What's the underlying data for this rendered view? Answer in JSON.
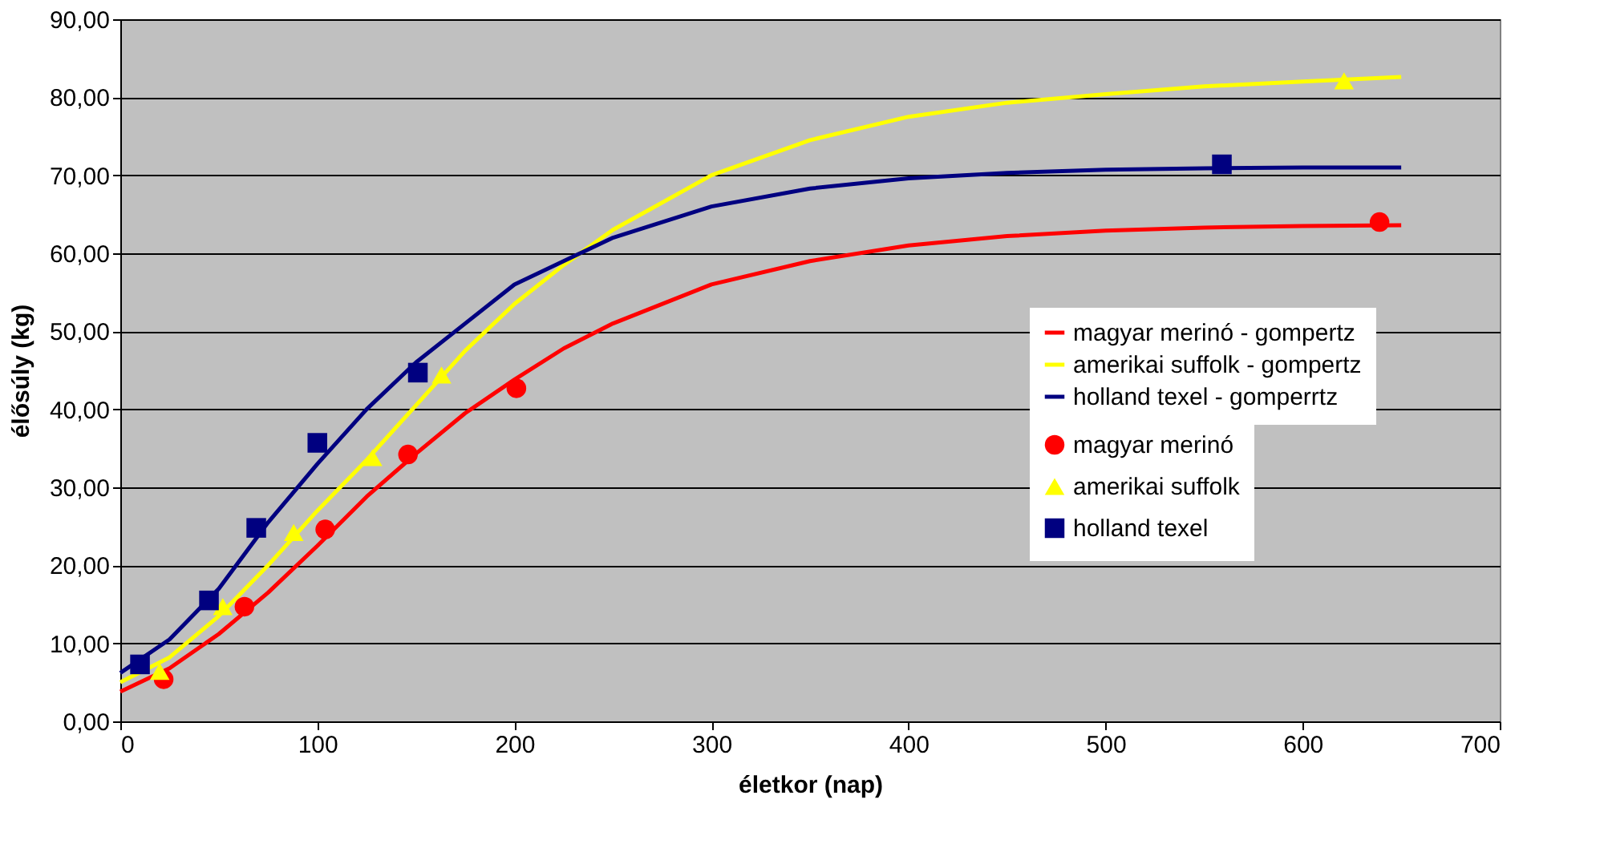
{
  "chart_data": {
    "type": "line",
    "xlabel": "életkor (nap)",
    "ylabel": "élősúly (kg)",
    "xlim": [
      0,
      700
    ],
    "xticks": [
      0,
      100,
      200,
      300,
      400,
      500,
      600,
      700
    ],
    "ylim": [
      0,
      90
    ],
    "yticks": [
      {
        "value": 0,
        "label": "0,00"
      },
      {
        "value": 10,
        "label": "10,00"
      },
      {
        "value": 20,
        "label": "20,00"
      },
      {
        "value": 30,
        "label": "30,00"
      },
      {
        "value": 40,
        "label": "40,00"
      },
      {
        "value": 50,
        "label": "50,00"
      },
      {
        "value": 60,
        "label": "60,00"
      },
      {
        "value": 70,
        "label": "70,00"
      },
      {
        "value": 80,
        "label": "80,00"
      },
      {
        "value": 90,
        "label": "90,00"
      }
    ],
    "grid": "y",
    "legend": "right",
    "series": [
      {
        "name": "magyar merinó - gompertz",
        "color": "#ff0000",
        "x": [
          0,
          25,
          50,
          75,
          100,
          125,
          150,
          175,
          200,
          225,
          250,
          300,
          350,
          400,
          450,
          500,
          550,
          600,
          650
        ],
        "values": [
          3.8,
          6.8,
          11.2,
          16.5,
          22.5,
          28.8,
          34.3,
          39.5,
          43.8,
          47.8,
          51.0,
          56.0,
          59.0,
          61.0,
          62.2,
          62.9,
          63.3,
          63.5,
          63.6
        ]
      },
      {
        "name": "amerikai suffolk - gompertz",
        "color": "#ffff00",
        "x": [
          0,
          25,
          50,
          75,
          100,
          125,
          150,
          175,
          200,
          225,
          250,
          300,
          350,
          400,
          450,
          500,
          550,
          600,
          650
        ],
        "values": [
          5.0,
          8.2,
          13.5,
          20.0,
          27.0,
          33.5,
          40.5,
          47.5,
          53.5,
          58.5,
          63.0,
          70.0,
          74.5,
          77.5,
          79.3,
          80.4,
          81.4,
          82.0,
          82.6
        ]
      },
      {
        "name": "holland texel - gomperrtz",
        "color": "#000080",
        "x": [
          0,
          25,
          50,
          75,
          100,
          125,
          150,
          175,
          200,
          225,
          250,
          300,
          350,
          400,
          450,
          500,
          550,
          600,
          650
        ],
        "values": [
          6.2,
          10.5,
          17.0,
          25.5,
          33.0,
          40.0,
          46.0,
          51.0,
          56.0,
          59.0,
          62.0,
          66.0,
          68.3,
          69.6,
          70.3,
          70.7,
          70.9,
          71.0,
          71.0
        ]
      },
      {
        "name": "magyar merinó",
        "type": "scatter",
        "color": "#ff0000",
        "marker": "circle",
        "x": [
          22,
          63,
          104,
          146,
          201,
          639
        ],
        "values": [
          5.4,
          14.7,
          24.6,
          34.2,
          42.7,
          64.0
        ]
      },
      {
        "name": "amerikai suffolk",
        "type": "scatter",
        "color": "#ffff00",
        "marker": "triangle",
        "x": [
          20,
          52,
          88,
          128,
          163,
          621
        ],
        "values": [
          6.4,
          14.7,
          24.2,
          33.8,
          44.4,
          82.1
        ]
      },
      {
        "name": "holland texel",
        "type": "scatter",
        "color": "#000080",
        "marker": "square",
        "x": [
          10,
          45,
          69,
          100,
          151,
          559
        ],
        "values": [
          7.3,
          15.5,
          24.8,
          35.7,
          44.7,
          71.4
        ]
      }
    ]
  }
}
